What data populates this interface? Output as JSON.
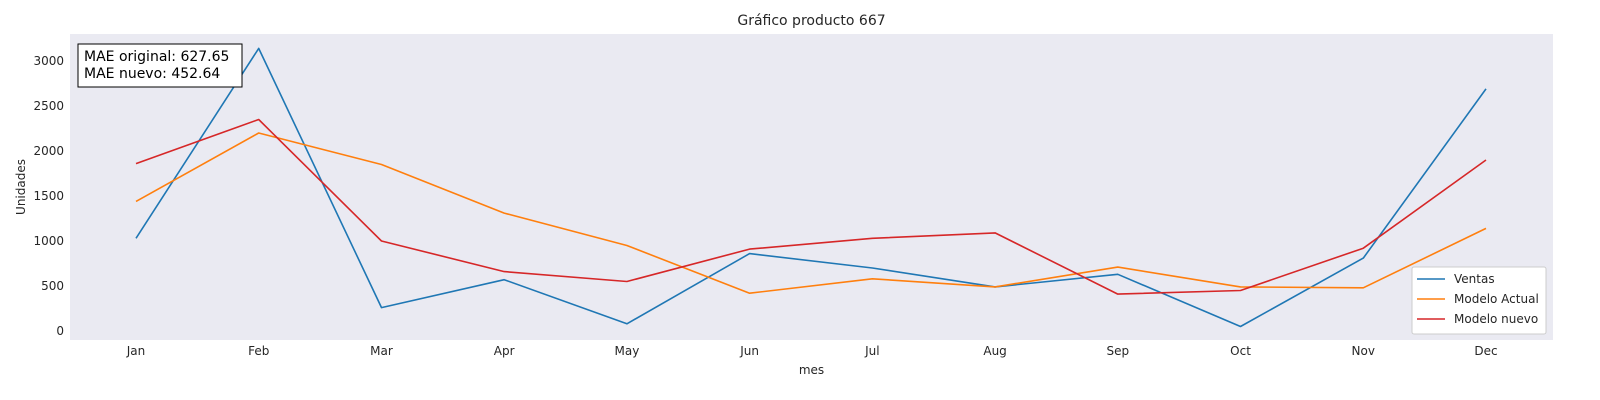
{
  "chart_data": {
    "type": "line",
    "title": "Gráfico producto 667",
    "xlabel": "mes",
    "ylabel": "Unidades",
    "categories": [
      "Jan",
      "Feb",
      "Mar",
      "Apr",
      "May",
      "Jun",
      "Jul",
      "Aug",
      "Sep",
      "Oct",
      "Nov",
      "Dec"
    ],
    "ylim": [
      -100,
      3300
    ],
    "yticks": [
      0,
      500,
      1000,
      1500,
      2000,
      2500,
      3000
    ],
    "grid": false,
    "legend_position": "lower-right",
    "series": [
      {
        "name": "Ventas",
        "color": "#1f77b4",
        "values": [
          1030,
          3140,
          260,
          570,
          80,
          860,
          700,
          490,
          630,
          50,
          810,
          2690
        ]
      },
      {
        "name": "Modelo Actual",
        "color": "#ff7f0e",
        "values": [
          1440,
          2200,
          1850,
          1310,
          950,
          420,
          580,
          490,
          710,
          490,
          480,
          1140
        ]
      },
      {
        "name": "Modelo nuevo",
        "color": "#d62728",
        "values": [
          1860,
          2350,
          1000,
          660,
          550,
          910,
          1030,
          1090,
          410,
          450,
          920,
          1900
        ]
      }
    ],
    "annotation": {
      "lines": [
        "MAE original: 627.65",
        "MAE nuevo: 452.64"
      ],
      "position": "top-left"
    },
    "plot_background": "#eaeaf2"
  }
}
